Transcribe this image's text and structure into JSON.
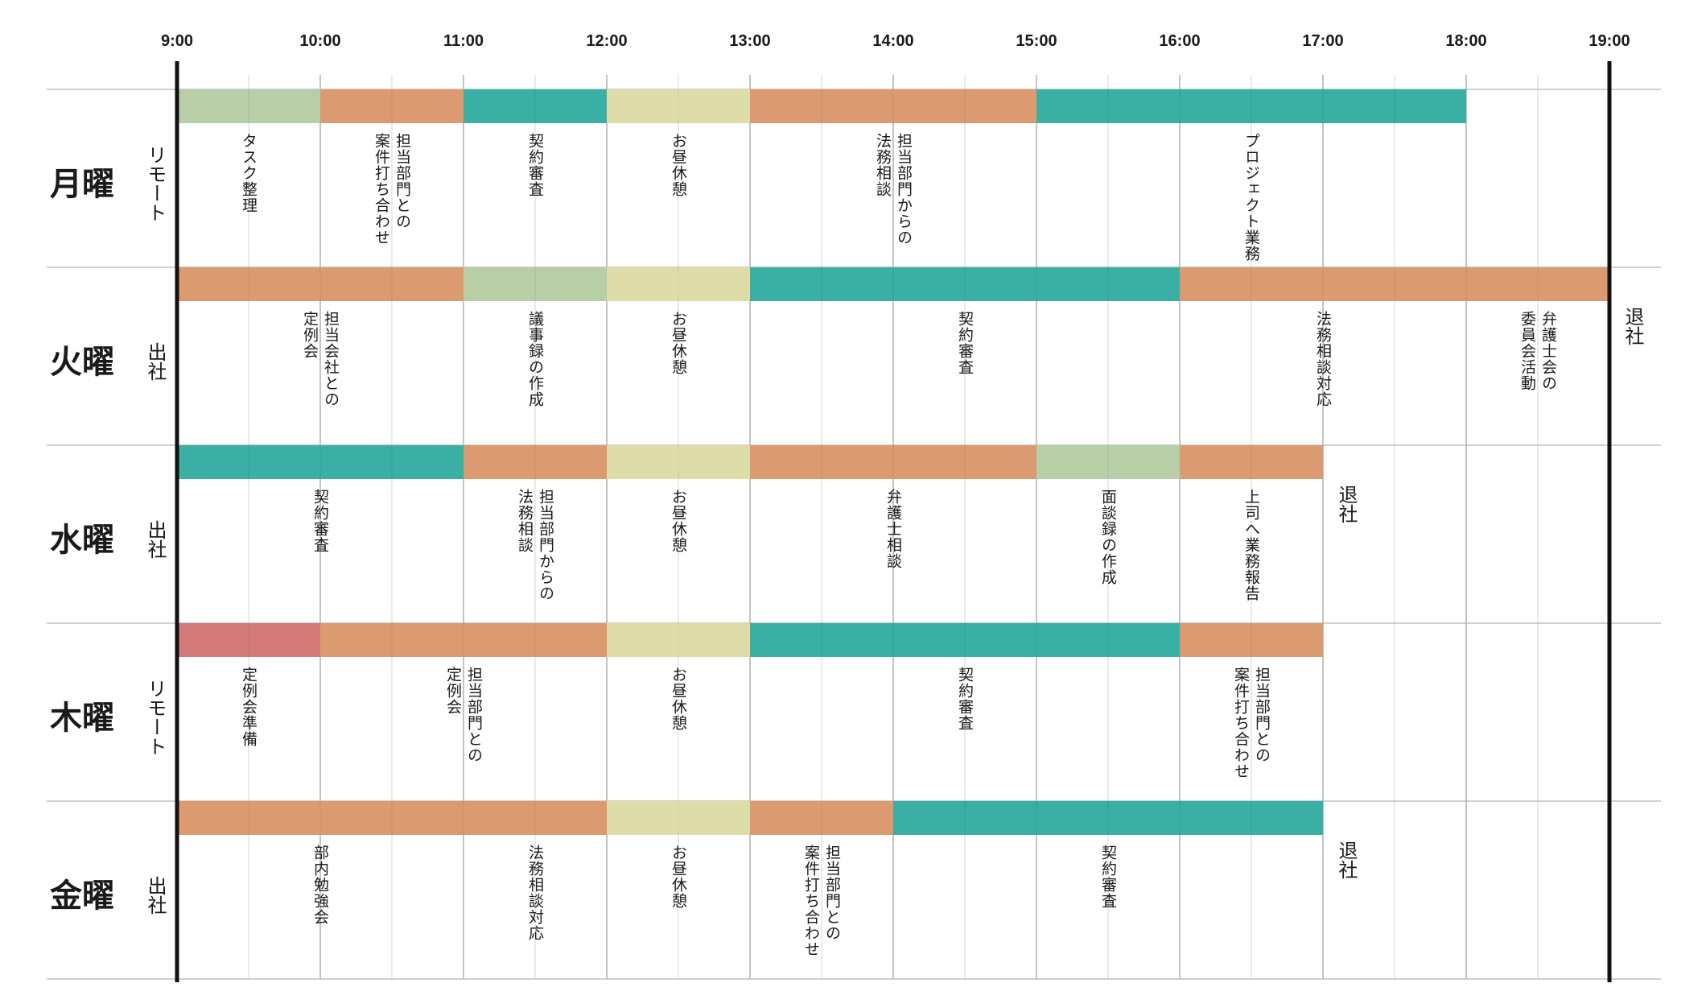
{
  "chart_data": {
    "type": "gantt",
    "x_ticks": [
      "9:00",
      "10:00",
      "11:00",
      "12:00",
      "13:00",
      "14:00",
      "15:00",
      "16:00",
      "17:00",
      "18:00",
      "19:00"
    ],
    "x_start": 9,
    "x_end": 19,
    "colors": {
      "orange": "#DC9A71",
      "teal": "#3AAFA4",
      "sage": "#B7CEA7",
      "cream": "#DEDCA8",
      "rose": "#D47979"
    },
    "days": [
      {
        "name": "月曜",
        "mode": "リモート",
        "end_label": "",
        "segments": [
          {
            "start": 9,
            "end": 10,
            "color": "sage",
            "label": "タスク整理"
          },
          {
            "start": 10,
            "end": 11,
            "color": "orange",
            "label": "担当部門との\n案件打ち合わせ"
          },
          {
            "start": 11,
            "end": 12,
            "color": "teal",
            "label": "契約審査"
          },
          {
            "start": 12,
            "end": 13,
            "color": "cream",
            "label": "お昼休憩"
          },
          {
            "start": 13,
            "end": 15,
            "color": "orange",
            "label": "担当部門からの\n法務相談"
          },
          {
            "start": 15,
            "end": 18,
            "color": "teal",
            "label": "プロジェクト業務"
          }
        ]
      },
      {
        "name": "火曜",
        "mode": "出社",
        "end_label": "退社",
        "end_at": 19,
        "segments": [
          {
            "start": 9,
            "end": 11,
            "color": "orange",
            "label": "担当会社との\n定例会"
          },
          {
            "start": 11,
            "end": 12,
            "color": "sage",
            "label": "議事録の作成"
          },
          {
            "start": 12,
            "end": 13,
            "color": "cream",
            "label": "お昼休憩"
          },
          {
            "start": 13,
            "end": 16,
            "color": "teal",
            "label": "契約審査"
          },
          {
            "start": 16,
            "end": 19,
            "color": "orange",
            "label": "法務相談対応",
            "label_at": 17
          },
          {
            "start": 18,
            "end": 19,
            "color": "none",
            "label": "弁護士会の\n委員会活動"
          }
        ]
      },
      {
        "name": "水曜",
        "mode": "出社",
        "end_label": "退社",
        "end_at": 17,
        "segments": [
          {
            "start": 9,
            "end": 11,
            "color": "teal",
            "label": "契約審査"
          },
          {
            "start": 11,
            "end": 12,
            "color": "orange",
            "label": "担当部門からの\n法務相談"
          },
          {
            "start": 12,
            "end": 13,
            "color": "cream",
            "label": "お昼休憩"
          },
          {
            "start": 13,
            "end": 15,
            "color": "orange",
            "label": "弁護士相談"
          },
          {
            "start": 15,
            "end": 16,
            "color": "sage",
            "label": "面談録の作成"
          },
          {
            "start": 16,
            "end": 17,
            "color": "orange",
            "label": "上司へ業務報告"
          }
        ]
      },
      {
        "name": "木曜",
        "mode": "リモート",
        "end_label": "",
        "segments": [
          {
            "start": 9,
            "end": 10,
            "color": "rose",
            "label": "定例会準備"
          },
          {
            "start": 10,
            "end": 12,
            "color": "orange",
            "label": "担当部門との\n定例会"
          },
          {
            "start": 12,
            "end": 13,
            "color": "cream",
            "label": "お昼休憩"
          },
          {
            "start": 13,
            "end": 16,
            "color": "teal",
            "label": "契約審査"
          },
          {
            "start": 16,
            "end": 17,
            "color": "orange",
            "label": "担当部門との\n案件打ち合わせ"
          }
        ]
      },
      {
        "name": "金曜",
        "mode": "出社",
        "end_label": "退社",
        "end_at": 17,
        "segments": [
          {
            "start": 9,
            "end": 12,
            "color": "orange",
            "label": "部内勉強会",
            "label_at": 10
          },
          {
            "start": 9,
            "end": 12,
            "color": "none",
            "label": "法務相談対応",
            "label_at": 11.5
          },
          {
            "start": 12,
            "end": 13,
            "color": "cream",
            "label": "お昼休憩"
          },
          {
            "start": 13,
            "end": 14,
            "color": "orange",
            "label": "担当部門との\n案件打ち合わせ"
          },
          {
            "start": 14,
            "end": 17,
            "color": "teal",
            "label": "契約審査"
          }
        ]
      }
    ]
  }
}
